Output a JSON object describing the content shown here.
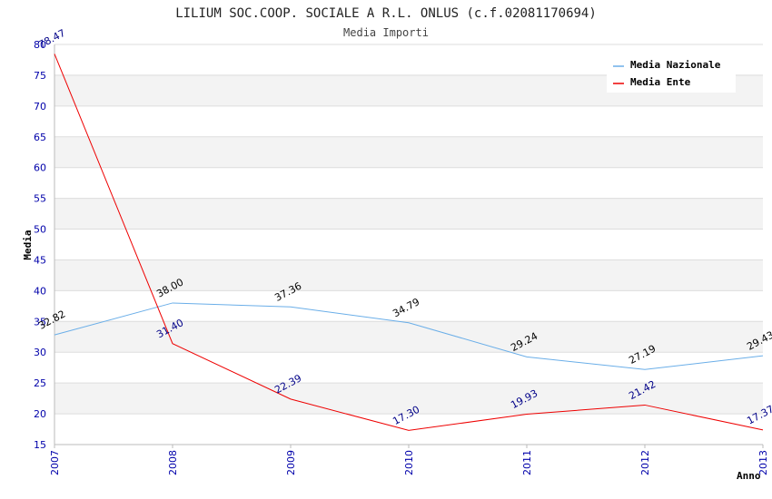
{
  "chart_data": {
    "type": "line",
    "title": "LILIUM SOC.COOP. SOCIALE A R.L. ONLUS (c.f.02081170694)",
    "subtitle": "Media Importi",
    "xlabel": "Anno",
    "ylabel": "Media",
    "categories": [
      "2007",
      "2008",
      "2009",
      "2010",
      "2011",
      "2012",
      "2013"
    ],
    "ylim": [
      15,
      80
    ],
    "ytick_step": 5,
    "grid": true,
    "legend_position": "top-right",
    "series": [
      {
        "name": "Media Nazionale",
        "color": "#6aaee8",
        "values": [
          32.82,
          38.0,
          37.36,
          34.79,
          29.24,
          27.19,
          29.43
        ],
        "labels": [
          "32.82",
          "38.00",
          "37.36",
          "34.79",
          "29.24",
          "27.19",
          "29.43"
        ]
      },
      {
        "name": "Media Ente",
        "color": "#ee0000",
        "values": [
          78.47,
          31.4,
          22.39,
          17.3,
          19.93,
          21.42,
          17.37
        ],
        "labels": [
          "78.47",
          "31.40",
          "22.39",
          "17.30",
          "19.93",
          "21.42",
          "17.37"
        ]
      }
    ]
  }
}
